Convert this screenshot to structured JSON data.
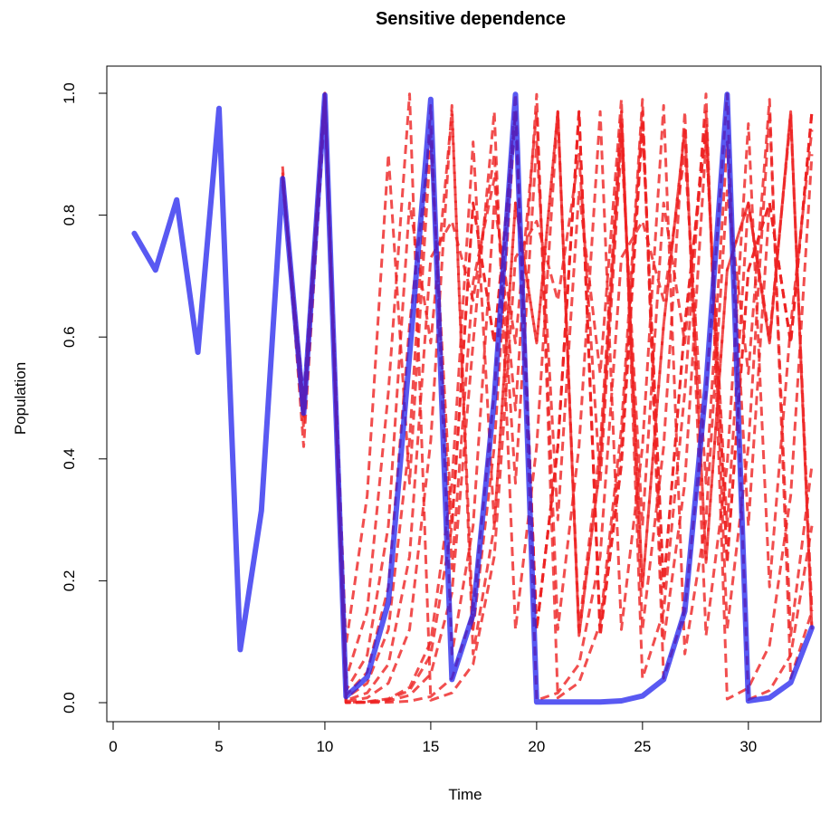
{
  "chart_data": {
    "type": "line",
    "title": "Sensitive dependence",
    "xlabel": "Time",
    "ylabel": "Population",
    "xlim": [
      0,
      33.5
    ],
    "ylim": [
      0,
      1
    ],
    "xticks": [
      0,
      5,
      10,
      15,
      20,
      25,
      30
    ],
    "yticks": [
      0.0,
      0.2,
      0.4,
      0.6,
      0.8,
      1.0
    ],
    "xtick_labels": [
      "0",
      "5",
      "10",
      "15",
      "20",
      "25",
      "30"
    ],
    "ytick_labels": [
      "0.0",
      "0.2",
      "0.4",
      "0.6",
      "0.8",
      "1.0"
    ],
    "grid": false,
    "colors": {
      "main": "#2222ee",
      "sensitive": "#ee2222"
    },
    "main_series": {
      "x": [
        1,
        2,
        3,
        4,
        5,
        6,
        7,
        8,
        9,
        10,
        11,
        12,
        13,
        14,
        15,
        16,
        17,
        18,
        19,
        20,
        21,
        22,
        23,
        24,
        25,
        26,
        27,
        28,
        29,
        30,
        31,
        32,
        33
      ],
      "values": [
        0.77,
        0.71,
        0.825,
        0.575,
        0.975,
        0.087,
        0.315,
        0.86,
        0.475,
        0.997,
        0.01,
        0.042,
        0.165,
        0.57,
        0.99,
        0.038,
        0.145,
        0.5,
        0.998,
        0.001,
        0.001,
        0.001,
        0.001,
        0.003,
        0.011,
        0.038,
        0.15,
        0.52,
        0.998,
        0.003,
        0.008,
        0.033,
        0.123
      ]
    },
    "sensitive_series": [
      {
        "x": [
          8,
          9,
          10,
          11,
          12,
          13,
          14,
          15,
          16,
          17,
          18,
          19,
          20,
          21,
          22,
          23,
          24,
          25,
          26,
          27,
          28,
          29,
          30,
          31,
          32,
          33
        ],
        "values": [
          0.86,
          0.47,
          0.997,
          0.012,
          0.05,
          0.19,
          0.62,
          0.94,
          0.22,
          0.69,
          0.86,
          0.48,
          0.998,
          0.008,
          0.033,
          0.13,
          0.45,
          0.99,
          0.04,
          0.15,
          0.51,
          0.999,
          0.005,
          0.02,
          0.078,
          0.29
        ]
      },
      {
        "x": [
          8,
          9,
          10,
          11,
          12,
          13,
          14,
          15,
          16,
          17,
          18,
          19,
          20,
          21,
          22,
          23,
          24,
          25,
          26,
          27,
          28,
          29,
          30,
          31,
          32,
          33
        ],
        "values": [
          0.87,
          0.45,
          0.99,
          0.04,
          0.15,
          0.51,
          0.999,
          0.004,
          0.016,
          0.063,
          0.24,
          0.73,
          0.79,
          0.66,
          0.9,
          0.36,
          0.92,
          0.29,
          0.82,
          0.59,
          0.97,
          0.12,
          0.42,
          0.97,
          0.11,
          0.39
        ]
      },
      {
        "x": [
          8,
          9,
          10,
          11,
          12,
          13,
          14,
          15,
          16,
          17,
          18,
          19,
          20,
          21,
          22,
          23,
          24,
          25,
          26,
          27,
          28,
          29,
          30,
          31,
          32,
          33
        ],
        "values": [
          0.85,
          0.5,
          0.999,
          0.004,
          0.016,
          0.063,
          0.24,
          0.73,
          0.79,
          0.66,
          0.9,
          0.36,
          0.92,
          0.3,
          0.84,
          0.54,
          0.99,
          0.04,
          0.15,
          0.51,
          0.999,
          0.006,
          0.024,
          0.094,
          0.34,
          0.9
        ]
      },
      {
        "x": [
          8,
          9,
          10,
          11,
          12,
          13,
          14,
          15,
          16,
          17,
          18,
          19,
          20,
          21,
          22,
          23,
          24,
          25,
          26,
          27,
          28,
          29,
          30,
          31,
          32,
          33
        ],
        "values": [
          0.88,
          0.42,
          0.975,
          0.095,
          0.34,
          0.9,
          0.36,
          0.92,
          0.29,
          0.82,
          0.59,
          0.97,
          0.12,
          0.42,
          0.97,
          0.12,
          0.42,
          0.97,
          0.1,
          0.36,
          0.92,
          0.29,
          0.82,
          0.6,
          0.96,
          0.15
        ]
      },
      {
        "x": [
          8,
          9,
          10,
          11,
          12,
          13,
          14,
          15,
          16,
          17,
          18,
          19,
          20,
          21,
          22,
          23,
          24,
          25,
          26,
          27,
          28,
          29,
          30,
          31,
          32,
          33
        ],
        "values": [
          0.86,
          0.48,
          0.998,
          0.008,
          0.032,
          0.12,
          0.43,
          0.98,
          0.08,
          0.29,
          0.82,
          0.59,
          0.97,
          0.12,
          0.42,
          0.97,
          0.12,
          0.42,
          0.98,
          0.08,
          0.3,
          0.84,
          0.54,
          0.99,
          0.04,
          0.15
        ]
      },
      {
        "x": [
          8,
          9,
          10,
          11,
          12,
          13,
          14,
          15,
          16,
          17,
          18,
          19,
          20,
          21,
          22,
          23,
          24,
          25,
          26,
          27,
          28,
          29,
          30,
          31,
          32,
          33
        ],
        "values": [
          0.865,
          0.465,
          0.995,
          0.02,
          0.078,
          0.29,
          0.82,
          0.59,
          0.97,
          0.12,
          0.42,
          0.97,
          0.12,
          0.42,
          0.97,
          0.11,
          0.39,
          0.95,
          0.19,
          0.62,
          0.94,
          0.23,
          0.71,
          0.82,
          0.59,
          0.97
        ]
      },
      {
        "x": [
          8,
          9,
          10,
          11,
          12,
          13,
          14,
          15,
          16,
          17,
          18,
          19,
          20,
          21,
          22,
          23,
          24,
          25,
          26,
          27,
          28,
          29,
          30,
          31,
          32,
          33
        ],
        "values": [
          0.855,
          0.49,
          0.9995,
          0.002,
          0.008,
          0.032,
          0.12,
          0.43,
          0.98,
          0.08,
          0.29,
          0.82,
          0.59,
          0.97,
          0.12,
          0.42,
          0.97,
          0.12,
          0.42,
          0.97,
          0.11,
          0.39,
          0.95,
          0.19,
          0.62,
          0.94
        ]
      },
      {
        "x": [
          8,
          9,
          10,
          11,
          12,
          13,
          14,
          15,
          16,
          17,
          18,
          19,
          20,
          21,
          22,
          23,
          24,
          25,
          26,
          27,
          28,
          29,
          30,
          31,
          32,
          33
        ],
        "values": [
          0.862,
          0.475,
          0.9999,
          0.0004,
          0.0016,
          0.0064,
          0.025,
          0.1,
          0.36,
          0.92,
          0.29,
          0.82,
          0.59,
          0.97,
          0.11,
          0.39,
          0.95,
          0.19,
          0.62,
          0.94,
          0.23,
          0.71,
          0.82,
          0.59,
          0.97,
          0.12
        ]
      },
      {
        "x": [
          8,
          9,
          10,
          11,
          12,
          13,
          14,
          15,
          16,
          17,
          18,
          19,
          20,
          21,
          22,
          23,
          24,
          25,
          26,
          27,
          28,
          29,
          30,
          31,
          32,
          33
        ],
        "values": [
          0.861,
          0.478,
          0.99995,
          0.0002,
          0.0008,
          0.003,
          0.012,
          0.047,
          0.18,
          0.59,
          0.97,
          0.12,
          0.42,
          0.97,
          0.11,
          0.39,
          0.95,
          0.19,
          0.62,
          0.94,
          0.23,
          0.71,
          0.82,
          0.59,
          0.97,
          0.12
        ]
      },
      {
        "x": [
          8,
          9,
          10,
          11,
          12,
          13,
          14,
          15,
          16,
          17,
          18,
          19,
          20,
          21,
          22,
          23,
          24,
          25,
          26,
          27,
          28,
          29,
          30,
          31,
          32,
          33
        ],
        "values": [
          0.8605,
          0.477,
          0.99999,
          4e-05,
          0.00016,
          0.00064,
          0.0026,
          0.01,
          0.04,
          0.15,
          0.51,
          0.999,
          0.004,
          0.016,
          0.063,
          0.24,
          0.73,
          0.79,
          0.66,
          0.9,
          0.36,
          0.92,
          0.29,
          0.82,
          0.59,
          0.97
        ]
      },
      {
        "x": [
          8,
          9,
          10,
          11,
          12,
          13,
          14,
          15,
          16,
          17,
          18,
          19,
          20,
          21,
          22,
          23,
          24,
          25,
          26,
          27,
          28,
          29,
          30,
          31,
          32,
          33
        ],
        "values": [
          0.8598,
          0.476,
          0.9999,
          0.0003,
          0.0012,
          0.005,
          0.02,
          0.078,
          0.29,
          0.82,
          0.59,
          0.97,
          0.12,
          0.42,
          0.97,
          0.11,
          0.39,
          0.95,
          0.19,
          0.62,
          0.94,
          0.23,
          0.71,
          0.82,
          0.59,
          0.97
        ]
      }
    ]
  }
}
